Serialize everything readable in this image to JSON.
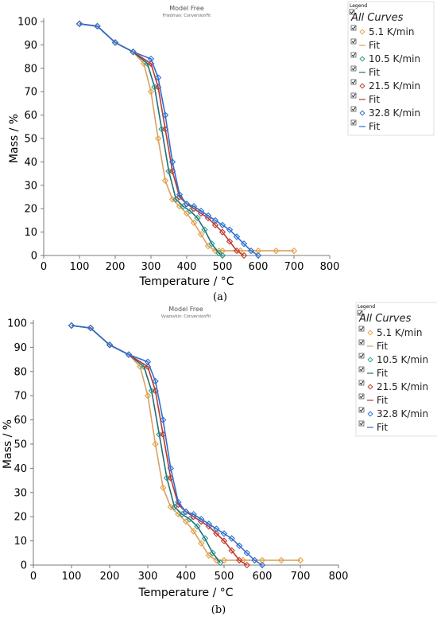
{
  "chart_data": [
    {
      "type": "scatter",
      "panel": "a",
      "caption": "(a)",
      "title": "Model Free",
      "subtitle": "Friedman: ConversionFit",
      "xlabel": "Temperature / °C",
      "ylabel": "Mass / %",
      "xlim": [
        0,
        800
      ],
      "ylim": [
        0,
        100
      ],
      "xticks": [
        0,
        100,
        200,
        300,
        400,
        500,
        600,
        700,
        800
      ],
      "yticks": [
        0,
        10,
        20,
        30,
        40,
        50,
        60,
        70,
        80,
        90,
        100
      ],
      "legend": {
        "title": "Legend",
        "all": "All Curves",
        "entries": [
          {
            "label": "5.1 K/min",
            "kind": "marker",
            "color": "#e6a23c"
          },
          {
            "label": "Fit",
            "kind": "line",
            "color": "#d9a066"
          },
          {
            "label": "10.5 K/min",
            "kind": "marker",
            "color": "#2a9d8f"
          },
          {
            "label": "Fit",
            "kind": "line",
            "color": "#1f6f78"
          },
          {
            "label": "21.5 K/min",
            "kind": "marker",
            "color": "#c0392b"
          },
          {
            "label": "Fit",
            "kind": "line",
            "color": "#c0392b"
          },
          {
            "label": "32.8 K/min",
            "kind": "marker",
            "color": "#2e6fd1"
          },
          {
            "label": "Fit",
            "kind": "line",
            "color": "#2e6fd1"
          }
        ]
      },
      "series": [
        {
          "name": "5.1 K/min",
          "color": "#e6a23c",
          "fit_color": "#d9a066",
          "x": [
            100,
            150,
            200,
            250,
            280,
            300,
            320,
            340,
            360,
            380,
            400,
            420,
            440,
            460,
            480,
            490,
            500,
            550,
            600,
            650,
            700
          ],
          "y": [
            99,
            98,
            91,
            87,
            82,
            70,
            50,
            32,
            24,
            21,
            18,
            14,
            9,
            4,
            2,
            2,
            2,
            2,
            2,
            2,
            2
          ]
        },
        {
          "name": "10.5 K/min",
          "color": "#2a9d8f",
          "fit_color": "#1f6f78",
          "x": [
            100,
            150,
            200,
            250,
            290,
            310,
            330,
            350,
            370,
            390,
            410,
            430,
            450,
            470,
            490,
            500
          ],
          "y": [
            99,
            98,
            91,
            87,
            82,
            72,
            54,
            36,
            24,
            21,
            19,
            16,
            11,
            5,
            1,
            0
          ]
        },
        {
          "name": "21.5 K/min",
          "color": "#c0392b",
          "fit_color": "#c0392b",
          "x": [
            100,
            150,
            200,
            250,
            300,
            320,
            340,
            360,
            380,
            400,
            420,
            440,
            460,
            480,
            500,
            520,
            540,
            560
          ],
          "y": [
            99,
            98,
            91,
            87,
            82,
            72,
            54,
            36,
            25,
            22,
            20,
            18,
            16,
            13,
            10,
            6,
            2,
            0
          ]
        },
        {
          "name": "32.8 K/min",
          "color": "#2e6fd1",
          "fit_color": "#2e6fd1",
          "x": [
            100,
            150,
            200,
            250,
            300,
            320,
            340,
            360,
            380,
            400,
            420,
            440,
            460,
            480,
            500,
            520,
            540,
            560,
            580,
            600
          ],
          "y": [
            99,
            98,
            91,
            87,
            84,
            76,
            60,
            40,
            26,
            22,
            21,
            19,
            17,
            15,
            13,
            11,
            8,
            5,
            2,
            0
          ]
        }
      ]
    },
    {
      "type": "scatter",
      "panel": "b",
      "caption": "(b)",
      "title": "Model Free",
      "subtitle": "Vyazovkin: ConversionFit",
      "xlabel": "Temperature / °C",
      "ylabel": "Mass / %",
      "xlim": [
        0,
        800
      ],
      "ylim": [
        0,
        100
      ],
      "xticks": [
        0,
        100,
        200,
        300,
        400,
        500,
        600,
        700,
        800
      ],
      "yticks": [
        0,
        10,
        20,
        30,
        40,
        50,
        60,
        70,
        80,
        90,
        100
      ],
      "legend": {
        "title": "Legend",
        "all": "All Curves",
        "entries": [
          {
            "label": "5.1 K/min",
            "kind": "marker",
            "color": "#e6a23c"
          },
          {
            "label": "Fit",
            "kind": "line",
            "color": "#d9a066"
          },
          {
            "label": "10.5 K/min",
            "kind": "marker",
            "color": "#2a9d8f"
          },
          {
            "label": "Fit",
            "kind": "line",
            "color": "#1f6f78"
          },
          {
            "label": "21.5 K/min",
            "kind": "marker",
            "color": "#c0392b"
          },
          {
            "label": "Fit",
            "kind": "line",
            "color": "#c0392b"
          },
          {
            "label": "32.8 K/min",
            "kind": "marker",
            "color": "#2e6fd1"
          },
          {
            "label": "Fit",
            "kind": "line",
            "color": "#2e6fd1"
          }
        ]
      },
      "series": [
        {
          "name": "5.1 K/min",
          "color": "#e6a23c",
          "fit_color": "#d9a066",
          "x": [
            100,
            150,
            200,
            250,
            280,
            300,
            320,
            340,
            360,
            380,
            400,
            420,
            440,
            460,
            480,
            500,
            550,
            600,
            650,
            700
          ],
          "y": [
            99,
            98,
            91,
            87,
            82,
            70,
            50,
            32,
            24,
            21,
            18,
            14,
            9,
            4,
            2,
            2,
            2,
            2,
            2,
            2
          ]
        },
        {
          "name": "10.5 K/min",
          "color": "#2a9d8f",
          "fit_color": "#1f6f78",
          "x": [
            100,
            150,
            200,
            250,
            290,
            310,
            330,
            350,
            370,
            390,
            410,
            430,
            450,
            470,
            490
          ],
          "y": [
            99,
            98,
            91,
            87,
            82,
            72,
            54,
            36,
            24,
            21,
            19,
            16,
            11,
            5,
            1
          ]
        },
        {
          "name": "21.5 K/min",
          "color": "#c0392b",
          "fit_color": "#c0392b",
          "x": [
            100,
            150,
            200,
            250,
            300,
            320,
            340,
            360,
            380,
            400,
            420,
            440,
            460,
            480,
            500,
            520,
            540,
            560
          ],
          "y": [
            99,
            98,
            91,
            87,
            82,
            72,
            54,
            36,
            25,
            22,
            20,
            18,
            16,
            13,
            10,
            6,
            2,
            0
          ]
        },
        {
          "name": "32.8 K/min",
          "color": "#2e6fd1",
          "fit_color": "#2e6fd1",
          "x": [
            100,
            150,
            200,
            250,
            300,
            320,
            340,
            360,
            380,
            400,
            420,
            440,
            460,
            480,
            500,
            520,
            540,
            560,
            580,
            600
          ],
          "y": [
            99,
            98,
            91,
            87,
            84,
            76,
            60,
            40,
            26,
            22,
            21,
            19,
            17,
            15,
            13,
            11,
            8,
            5,
            2,
            0
          ]
        }
      ]
    }
  ]
}
